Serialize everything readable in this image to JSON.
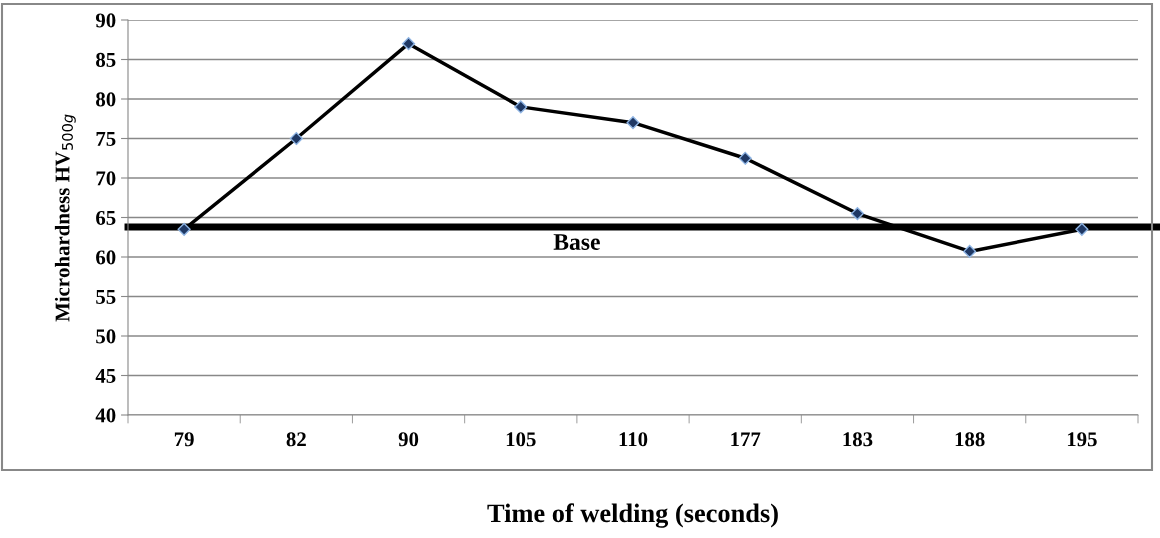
{
  "chart_data": {
    "type": "line",
    "categories": [
      "79",
      "82",
      "90",
      "105",
      "110",
      "177",
      "183",
      "188",
      "195"
    ],
    "series": [
      {
        "color": "#000000",
        "values": [
          63.5,
          75,
          87,
          79,
          77,
          72.5,
          65.5,
          60.7,
          63.5
        ]
      }
    ],
    "xlabel": "Time of welding (seconds)",
    "ylabel": "Microhardness HV$_{500g}$",
    "ylim": [
      40,
      90
    ],
    "yticks": [
      40,
      45,
      50,
      55,
      60,
      65,
      70,
      75,
      80,
      85,
      90
    ],
    "ref_lines": [
      {
        "axis": "y",
        "value": 63.8,
        "label": "Base",
        "color": "#000000"
      }
    ],
    "grid": "y",
    "marker": "diamond",
    "line_style": "solid"
  }
}
